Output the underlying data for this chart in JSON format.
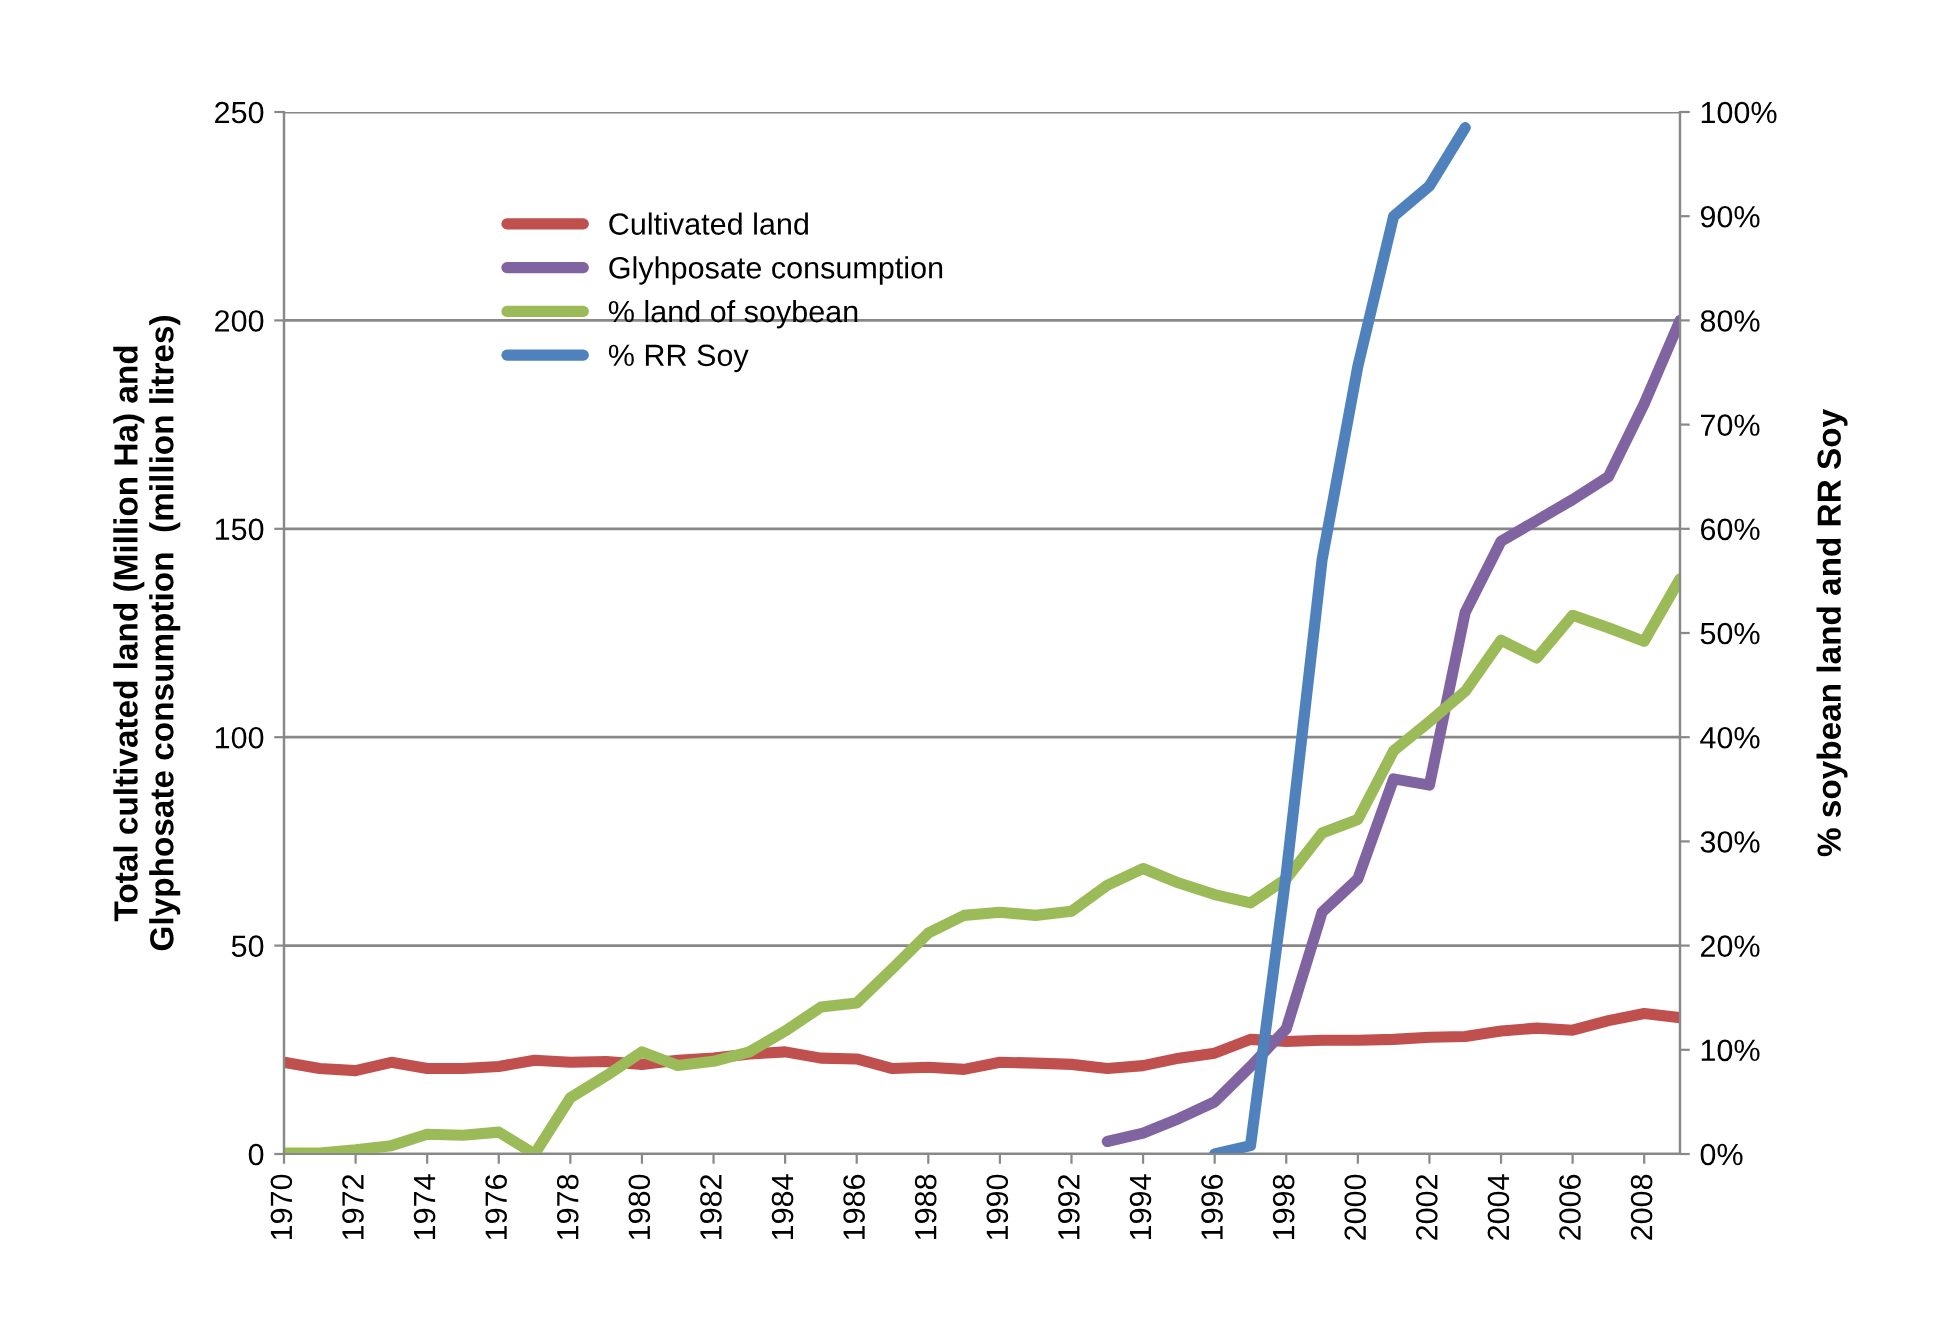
{
  "chart_data": {
    "type": "line",
    "x": [
      1970,
      1971,
      1972,
      1973,
      1974,
      1975,
      1976,
      1977,
      1978,
      1979,
      1980,
      1981,
      1982,
      1983,
      1984,
      1985,
      1986,
      1987,
      1988,
      1989,
      1990,
      1991,
      1992,
      1993,
      1994,
      1995,
      1996,
      1997,
      1998,
      1999,
      2000,
      2001,
      2002,
      2003,
      2004,
      2005,
      2006,
      2007,
      2008,
      2009
    ],
    "ylabel": "Total cultivated land (Million Ha) and\nGlyphosate consumption  (million litres)",
    "y2label": "% soybean land and RR Soy",
    "xlim": [
      1970,
      2009
    ],
    "xticks": [
      1970,
      1972,
      1974,
      1976,
      1978,
      1980,
      1982,
      1984,
      1986,
      1988,
      1990,
      1992,
      1994,
      1996,
      1998,
      2000,
      2002,
      2004,
      2006,
      2008
    ],
    "ylim": [
      0,
      250
    ],
    "yticks": [
      0,
      50,
      100,
      150,
      200,
      250
    ],
    "y2lim": [
      0,
      100
    ],
    "y2ticks": [
      {
        "value": 0,
        "label": "0%"
      },
      {
        "value": 10,
        "label": "10%"
      },
      {
        "value": 20,
        "label": "20%"
      },
      {
        "value": 30,
        "label": "30%"
      },
      {
        "value": 40,
        "label": "40%"
      },
      {
        "value": 50,
        "label": "50%"
      },
      {
        "value": 60,
        "label": "60%"
      },
      {
        "value": 70,
        "label": "70%"
      },
      {
        "value": 80,
        "label": "80%"
      },
      {
        "value": 90,
        "label": "90%"
      },
      {
        "value": 100,
        "label": "100%"
      }
    ],
    "grid": "y",
    "legend": "top left",
    "marker": "none",
    "line_style": "solid",
    "series": [
      {
        "name": "Cultivated land",
        "color": "#c0504d",
        "values": [
          22,
          20.5,
          20,
          22,
          20.5,
          20.5,
          21,
          22.5,
          22,
          22.2,
          21.5,
          22.5,
          23,
          24,
          24.5,
          23,
          22.8,
          20.5,
          20.8,
          20.3,
          22,
          21.8,
          21.5,
          20.5,
          21.2,
          23,
          24.2,
          27.5,
          27,
          27.3,
          27.3,
          27.5,
          28,
          28.2,
          29.5,
          30.2,
          29.7,
          32,
          33.7,
          32.7
        ]
      },
      {
        "name": "Glyhposate consumption",
        "color": "#8064a2",
        "values": [
          null,
          null,
          null,
          null,
          null,
          null,
          null,
          null,
          null,
          null,
          null,
          null,
          null,
          null,
          null,
          null,
          null,
          null,
          null,
          null,
          null,
          null,
          null,
          3,
          5,
          8.5,
          12.5,
          21,
          30,
          58,
          66,
          90,
          88.5,
          130,
          147,
          152,
          157,
          162.5,
          180,
          200
        ]
      },
      {
        "name": "% land of soybean",
        "color": "#9bbb59",
        "axis": "y2",
        "values": [
          0.1,
          0.1,
          0.4,
          0.8,
          1.9,
          1.8,
          2.1,
          0,
          5.4,
          7.5,
          9.8,
          8.5,
          8.9,
          9.8,
          11.8,
          14.1,
          14.5,
          17.8,
          21.2,
          22.9,
          23.2,
          22.9,
          23.3,
          25.8,
          27.4,
          26,
          24.9,
          24.1,
          26.4,
          30.8,
          32.1,
          38.7,
          41.5,
          44.4,
          49.3,
          47.6,
          51.7,
          50.5,
          49.2,
          55.2
        ]
      },
      {
        "name": "% RR Soy",
        "color": "#4f81bd",
        "axis": "y2",
        "values": [
          null,
          null,
          null,
          null,
          null,
          null,
          null,
          null,
          null,
          null,
          null,
          null,
          null,
          null,
          null,
          null,
          null,
          null,
          null,
          null,
          null,
          null,
          null,
          null,
          null,
          null,
          0,
          0.8,
          26.9,
          57,
          75.6,
          90,
          92.9,
          98.5,
          null,
          null,
          null,
          null,
          null,
          null
        ]
      }
    ]
  }
}
